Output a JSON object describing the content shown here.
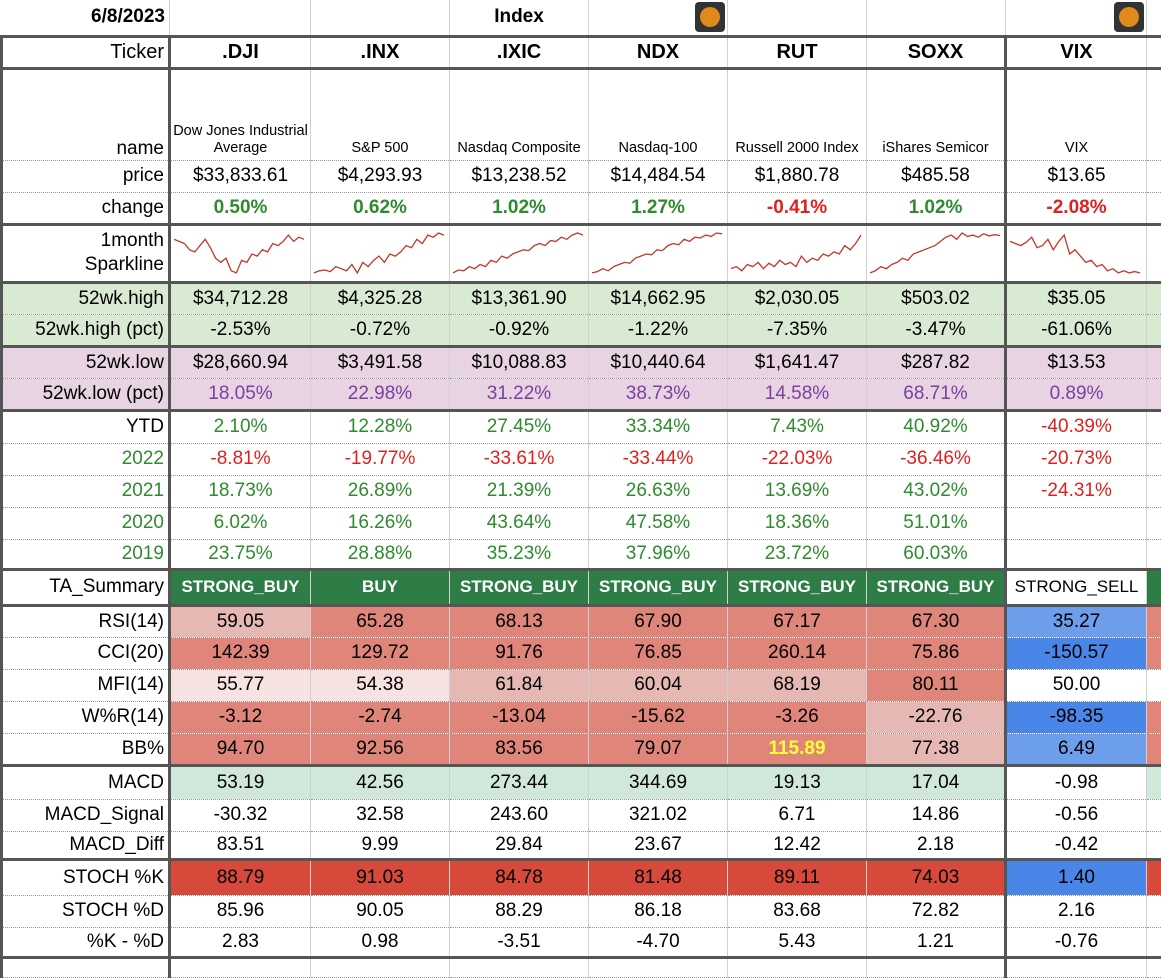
{
  "date": "6/8/2023",
  "section_title": "Index",
  "pumpkin_icon": "pumpkin-icon",
  "columns": [
    ".DJI",
    ".INX",
    ".IXIC",
    "NDX",
    "RUT",
    "SOXX",
    "VIX"
  ],
  "row_labels": {
    "ticker": "Ticker",
    "name": "name",
    "price": "price",
    "change": "change",
    "sparkline_1": "1month",
    "sparkline_2": "Sparkline",
    "high52": "52wk.high",
    "high52pct": "52wk.high (pct)",
    "low52": "52wk.low",
    "low52pct": "52wk.low (pct)",
    "ytd": "YTD",
    "y2022": "2022",
    "y2021": "2021",
    "y2020": "2020",
    "y2019": "2019",
    "ta": "TA_Summary",
    "rsi": "RSI(14)",
    "cci": "CCI(20)",
    "mfi": "MFI(14)",
    "wr": "W%R(14)",
    "bb": "BB%",
    "macd": "MACD",
    "macd_signal": "MACD_Signal",
    "macd_diff": "MACD_Diff",
    "stochk": "STOCH %K",
    "stochd": "STOCH %D",
    "kd": "%K - %D"
  },
  "names": [
    "Dow Jones Industrial Average",
    "S&P 500",
    "Nasdaq Composite",
    "Nasdaq-100",
    "Russell 2000 Index",
    "iShares Semicor",
    "VIX"
  ],
  "price": [
    "$33,833.61",
    "$4,293.93",
    "$13,238.52",
    "$14,484.54",
    "$1,880.78",
    "$485.58",
    "$13.65"
  ],
  "change": [
    "0.50%",
    "0.62%",
    "1.02%",
    "1.27%",
    "-0.41%",
    "1.02%",
    "-2.08%"
  ],
  "high52": [
    "$34,712.28",
    "$4,325.28",
    "$13,361.90",
    "$14,662.95",
    "$2,030.05",
    "$503.02",
    "$35.05"
  ],
  "high52pct": [
    "-2.53%",
    "-0.72%",
    "-0.92%",
    "-1.22%",
    "-7.35%",
    "-3.47%",
    "-61.06%"
  ],
  "low52": [
    "$28,660.94",
    "$3,491.58",
    "$10,088.83",
    "$10,440.64",
    "$1,641.47",
    "$287.82",
    "$13.53"
  ],
  "low52pct": [
    "18.05%",
    "22.98%",
    "31.22%",
    "38.73%",
    "14.58%",
    "68.71%",
    "0.89%"
  ],
  "ytd": [
    "2.10%",
    "12.28%",
    "27.45%",
    "33.34%",
    "7.43%",
    "40.92%",
    "-40.39%"
  ],
  "y2022": [
    "-8.81%",
    "-19.77%",
    "-33.61%",
    "-33.44%",
    "-22.03%",
    "-36.46%",
    "-20.73%"
  ],
  "y2021": [
    "18.73%",
    "26.89%",
    "21.39%",
    "26.63%",
    "13.69%",
    "43.02%",
    "-24.31%"
  ],
  "y2020": [
    "6.02%",
    "16.26%",
    "43.64%",
    "47.58%",
    "18.36%",
    "51.01%",
    ""
  ],
  "y2019": [
    "23.75%",
    "28.88%",
    "35.23%",
    "37.96%",
    "23.72%",
    "60.03%",
    ""
  ],
  "ta": [
    "STRONG_BUY",
    "BUY",
    "STRONG_BUY",
    "STRONG_BUY",
    "STRONG_BUY",
    "STRONG_BUY",
    "STRONG_SELL"
  ],
  "rsi": [
    "59.05",
    "65.28",
    "68.13",
    "67.90",
    "67.17",
    "67.30",
    "35.27"
  ],
  "cci": [
    "142.39",
    "129.72",
    "91.76",
    "76.85",
    "260.14",
    "75.86",
    "-150.57"
  ],
  "mfi": [
    "55.77",
    "54.38",
    "61.84",
    "60.04",
    "68.19",
    "80.11",
    "50.00"
  ],
  "wr": [
    "-3.12",
    "-2.74",
    "-13.04",
    "-15.62",
    "-3.26",
    "-22.76",
    "-98.35"
  ],
  "bb": [
    "94.70",
    "92.56",
    "83.56",
    "79.07",
    "115.89",
    "77.38",
    "6.49"
  ],
  "macd": [
    "53.19",
    "42.56",
    "273.44",
    "344.69",
    "19.13",
    "17.04",
    "-0.98"
  ],
  "macd_signal": [
    "-30.32",
    "32.58",
    "243.60",
    "321.02",
    "6.71",
    "14.86",
    "-0.56"
  ],
  "macd_diff": [
    "83.51",
    "9.99",
    "29.84",
    "23.67",
    "12.42",
    "2.18",
    "-0.42"
  ],
  "stochk": [
    "88.79",
    "91.03",
    "84.78",
    "81.48",
    "89.11",
    "74.03",
    "1.40"
  ],
  "stochd": [
    "85.96",
    "90.05",
    "88.29",
    "86.18",
    "83.68",
    "72.82",
    "2.16"
  ],
  "kd": [
    "2.83",
    "0.98",
    "-3.51",
    "-4.70",
    "5.43",
    "1.21",
    "-0.76"
  ],
  "colors": {
    "green_text": "#2e8b2e",
    "red_text": "#e02020",
    "purple_text": "#7b3fa0",
    "ta_green": "#2e7d46",
    "green_band": "#d9ead3",
    "purple_band": "#e7d3e1",
    "red_strong": "#d6493b",
    "red_mid": "#e0857a",
    "red_light": "#e6b8b3",
    "red_pale": "#f6e3e1",
    "blue_strong": "#4a86e8",
    "blue_mid": "#6d9eeb",
    "macd_green": "#cfe8d9",
    "yellow_text": "#ffff33"
  }
}
